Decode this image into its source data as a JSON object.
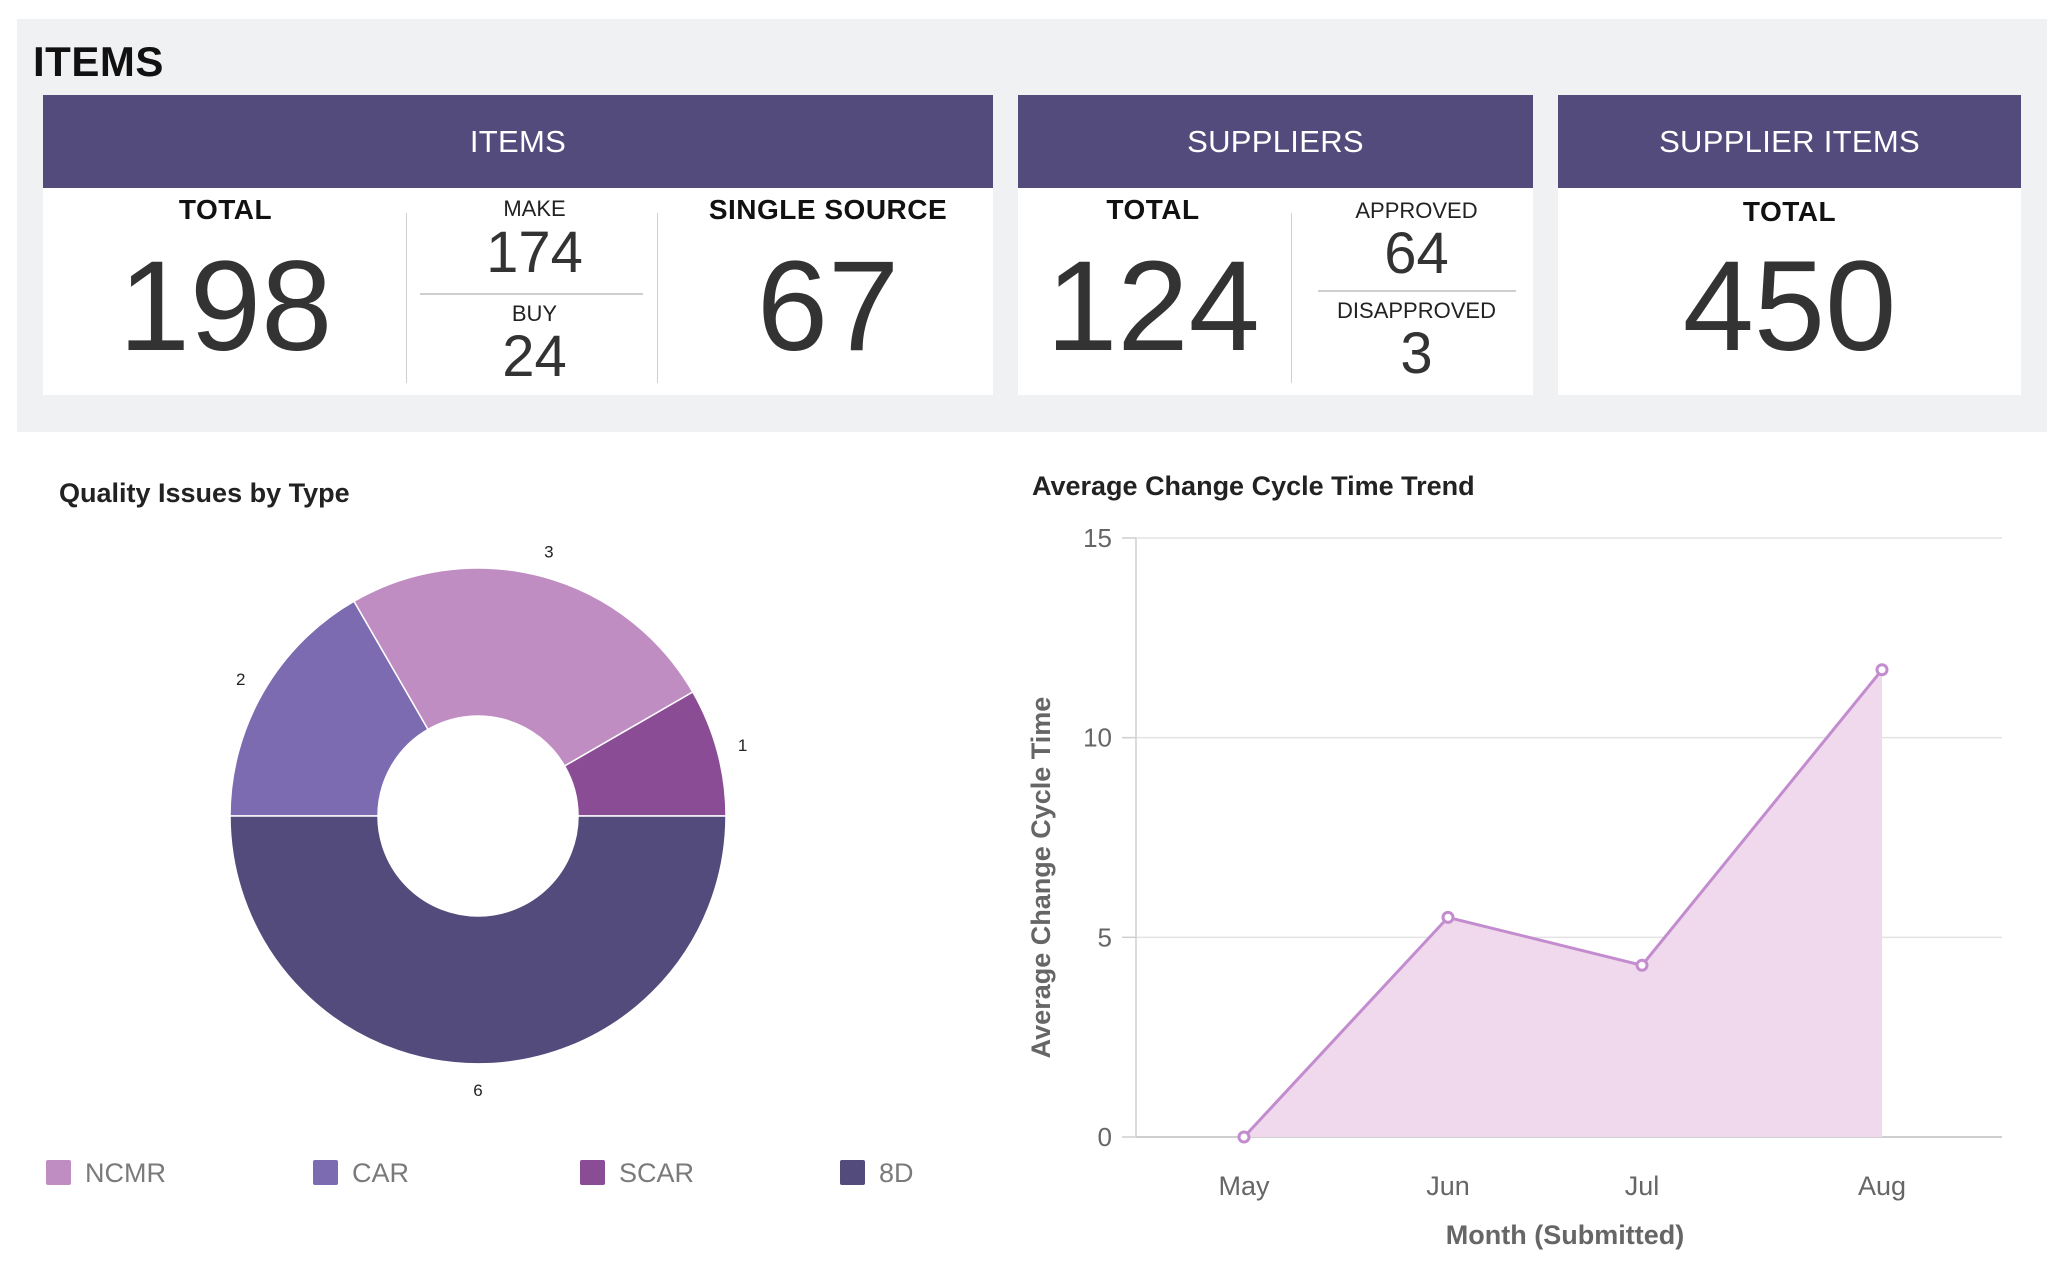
{
  "page": {
    "title": "ITEMS"
  },
  "items_card": {
    "header": "ITEMS",
    "total_label": "TOTAL",
    "total_value": "198",
    "make_label": "MAKE",
    "make_value": "174",
    "buy_label": "BUY",
    "buy_value": "24",
    "single_source_label": "SINGLE SOURCE",
    "single_source_value": "67"
  },
  "suppliers_card": {
    "header": "SUPPLIERS",
    "total_label": "TOTAL",
    "total_value": "124",
    "approved_label": "APPROVED",
    "approved_value": "64",
    "disapproved_label": "DISAPPROVED",
    "disapproved_value": "3"
  },
  "supplier_items_card": {
    "header": "SUPPLIER ITEMS",
    "total_label": "TOTAL",
    "total_value": "450"
  },
  "colors": {
    "header_bg": "#534b7c",
    "ncmr": "#c08dc3",
    "car": "#7c6bb0",
    "scar": "#8b4c96",
    "d8": "#534b7c",
    "area_fill": "#f0d9ec",
    "line": "#c38ccf"
  },
  "chart_data": [
    {
      "type": "pie",
      "title": "Quality Issues by Type",
      "categories": [
        "NCMR",
        "CAR",
        "SCAR",
        "8D"
      ],
      "values": [
        3,
        2,
        1,
        6
      ],
      "legend": "bottom"
    },
    {
      "type": "area",
      "title": "Average Change Cycle Time Trend",
      "x": [
        "May",
        "Jun",
        "Jul",
        "Aug"
      ],
      "values": [
        0,
        5.5,
        4.3,
        11.7
      ],
      "xlabel": "Month (Submitted)",
      "ylabel": "Average Change Cycle Time",
      "ylim": [
        0,
        15
      ],
      "yticks": [
        0,
        5,
        10,
        15
      ],
      "grid": true
    }
  ]
}
